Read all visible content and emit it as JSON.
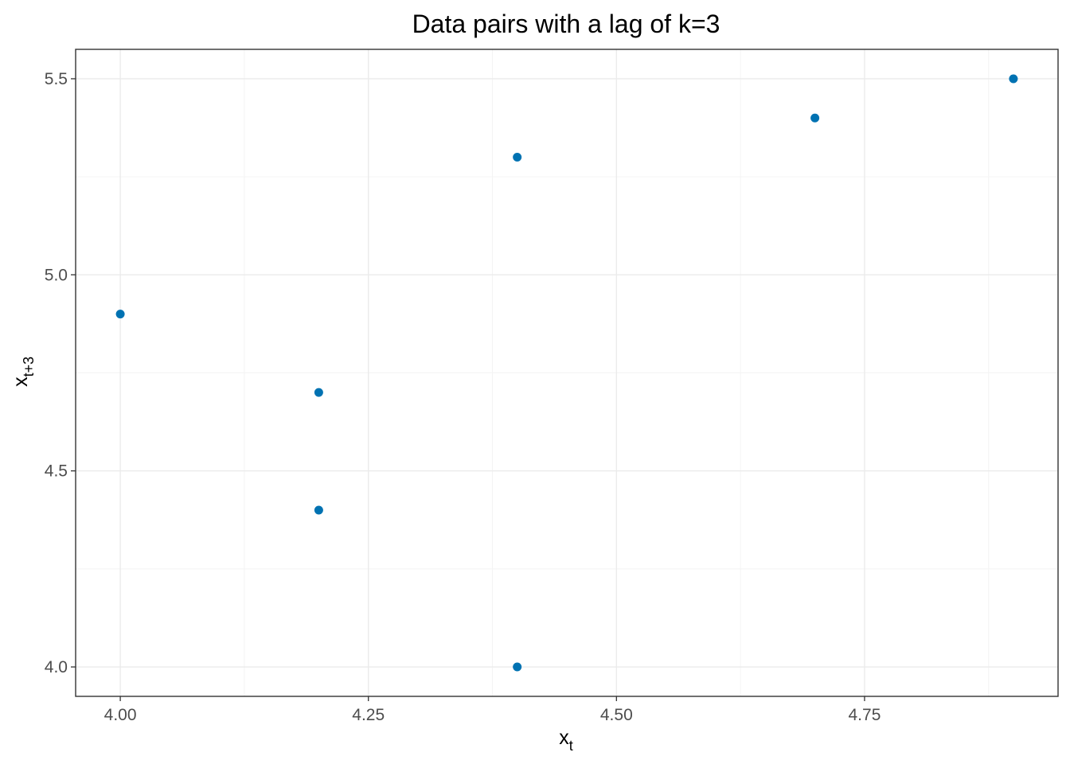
{
  "chart_data": {
    "type": "scatter",
    "title": "Data pairs with a lag of k=3",
    "xlabel": {
      "base": "x",
      "sub": "t"
    },
    "ylabel": {
      "base": "x",
      "sub": "t+3"
    },
    "x": [
      4.0,
      4.2,
      4.2,
      4.4,
      4.4,
      4.7,
      4.9
    ],
    "y": [
      4.9,
      4.7,
      4.4,
      5.3,
      4.0,
      5.4,
      5.5
    ],
    "xlim": [
      3.955,
      4.945
    ],
    "ylim": [
      3.925,
      5.575
    ],
    "xticks": [
      4.0,
      4.25,
      4.5,
      4.75
    ],
    "xtick_labels": [
      "4.00",
      "4.25",
      "4.50",
      "4.75"
    ],
    "xminor": [
      4.125,
      4.375,
      4.625,
      4.875
    ],
    "yticks": [
      4.0,
      4.5,
      5.0,
      5.5
    ],
    "ytick_labels": [
      "4.0",
      "4.5",
      "5.0",
      "5.5"
    ],
    "yminor": [
      4.25,
      4.75,
      5.25
    ],
    "grid": true,
    "legend": "none",
    "point_color": "#0072B2",
    "grid_major_color": "#EBEBEB",
    "grid_minor_color": "#F4F4F4",
    "panel_border_color": "#333333"
  }
}
